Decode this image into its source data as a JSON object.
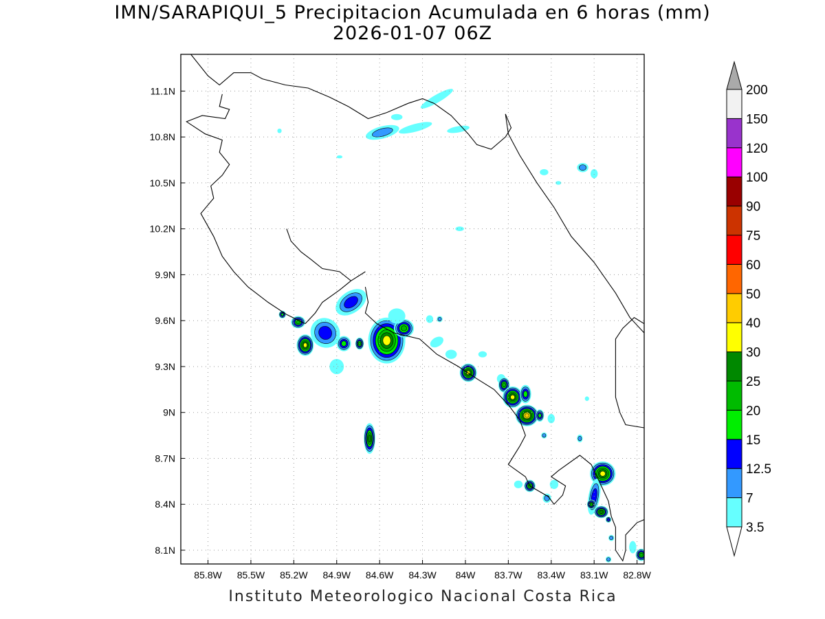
{
  "title": {
    "line1": "IMN/SARAPIQUI_5 Precipitacion Acumulada en 6 horas (mm)",
    "line2": "2026-01-07 06Z"
  },
  "footer": "Instituto Meteorologico Nacional Costa Rica",
  "map": {
    "lon_range": [
      -85.99,
      -82.75
    ],
    "lat_range": [
      8.01,
      11.34
    ],
    "x_ticks": [
      {
        "lon": -85.8,
        "label": "85.8W"
      },
      {
        "lon": -85.5,
        "label": "85.5W"
      },
      {
        "lon": -85.2,
        "label": "85.2W"
      },
      {
        "lon": -84.9,
        "label": "84.9W"
      },
      {
        "lon": -84.6,
        "label": "84.6W"
      },
      {
        "lon": -84.3,
        "label": "84.3W"
      },
      {
        "lon": -84.0,
        "label": "84W"
      },
      {
        "lon": -83.7,
        "label": "83.7W"
      },
      {
        "lon": -83.4,
        "label": "83.4W"
      },
      {
        "lon": -83.1,
        "label": "83.1W"
      },
      {
        "lon": -82.8,
        "label": "82.8W"
      }
    ],
    "y_ticks": [
      {
        "lat": 11.1,
        "label": "11.1N"
      },
      {
        "lat": 10.8,
        "label": "10.8N"
      },
      {
        "lat": 10.5,
        "label": "10.5N"
      },
      {
        "lat": 10.2,
        "label": "10.2N"
      },
      {
        "lat": 9.9,
        "label": "9.9N"
      },
      {
        "lat": 9.6,
        "label": "9.6N"
      },
      {
        "lat": 9.3,
        "label": "9.3N"
      },
      {
        "lat": 9.0,
        "label": "9N"
      },
      {
        "lat": 8.7,
        "label": "8.7N"
      },
      {
        "lat": 8.4,
        "label": "8.4N"
      },
      {
        "lat": 8.1,
        "label": "8.1N"
      }
    ],
    "grid": "dotted",
    "coastline": [
      [
        [
          -85.92,
          11.34
        ],
        [
          -85.8,
          11.2
        ],
        [
          -85.72,
          11.14
        ],
        [
          -85.62,
          11.22
        ],
        [
          -85.5,
          11.22
        ],
        [
          -85.42,
          11.18
        ],
        [
          -85.26,
          11.14
        ],
        [
          -85.1,
          11.12
        ],
        [
          -84.95,
          11.06
        ],
        [
          -84.82,
          11.0
        ],
        [
          -84.68,
          10.92
        ],
        [
          -84.55,
          10.96
        ],
        [
          -84.4,
          11.02
        ],
        [
          -84.3,
          11.05
        ],
        [
          -84.22,
          11.02
        ],
        [
          -84.1,
          10.94
        ],
        [
          -83.98,
          10.82
        ],
        [
          -83.92,
          10.75
        ],
        [
          -83.82,
          10.72
        ],
        [
          -83.72,
          10.8
        ],
        [
          -83.68,
          10.86
        ],
        [
          -83.72,
          10.95
        ]
      ],
      [
        [
          -85.7,
          11.08
        ],
        [
          -85.72,
          11.0
        ],
        [
          -85.65,
          10.98
        ],
        [
          -85.68,
          10.92
        ],
        [
          -85.84,
          10.94
        ],
        [
          -85.95,
          10.9
        ],
        [
          -85.82,
          10.82
        ],
        [
          -85.7,
          10.78
        ],
        [
          -85.72,
          10.7
        ],
        [
          -85.65,
          10.62
        ],
        [
          -85.7,
          10.55
        ],
        [
          -85.78,
          10.48
        ],
        [
          -85.76,
          10.4
        ],
        [
          -85.85,
          10.3
        ],
        [
          -85.76,
          10.15
        ],
        [
          -85.7,
          10.02
        ],
        [
          -85.62,
          9.92
        ],
        [
          -85.52,
          9.82
        ],
        [
          -85.38,
          9.72
        ],
        [
          -85.25,
          9.64
        ],
        [
          -85.12,
          9.58
        ]
      ],
      [
        [
          -85.12,
          9.58
        ],
        [
          -85.05,
          9.65
        ],
        [
          -85.0,
          9.72
        ],
        [
          -84.88,
          9.8
        ],
        [
          -84.8,
          9.86
        ],
        [
          -84.7,
          9.92
        ]
      ],
      [
        [
          -85.25,
          10.2
        ],
        [
          -85.22,
          10.12
        ],
        [
          -85.15,
          10.05
        ],
        [
          -85.08,
          10.0
        ],
        [
          -85.0,
          9.94
        ],
        [
          -84.88,
          9.92
        ],
        [
          -84.8,
          9.86
        ]
      ],
      [
        [
          -84.7,
          9.82
        ],
        [
          -84.68,
          9.72
        ],
        [
          -84.7,
          9.65
        ],
        [
          -84.62,
          9.58
        ],
        [
          -84.5,
          9.52
        ],
        [
          -84.32,
          9.48
        ],
        [
          -84.2,
          9.38
        ],
        [
          -84.05,
          9.3
        ],
        [
          -83.92,
          9.22
        ],
        [
          -83.8,
          9.15
        ],
        [
          -83.7,
          9.05
        ],
        [
          -83.62,
          8.95
        ],
        [
          -83.58,
          8.85
        ],
        [
          -83.62,
          8.78
        ],
        [
          -83.7,
          8.66
        ],
        [
          -83.58,
          8.58
        ],
        [
          -83.55,
          8.52
        ],
        [
          -83.42,
          8.45
        ],
        [
          -83.38,
          8.4
        ],
        [
          -83.32,
          8.46
        ],
        [
          -83.3,
          8.52
        ],
        [
          -83.4,
          8.58
        ],
        [
          -83.35,
          8.62
        ],
        [
          -83.2,
          8.72
        ],
        [
          -83.12,
          8.66
        ],
        [
          -83.05,
          8.52
        ],
        [
          -83.0,
          8.42
        ],
        [
          -82.98,
          8.32
        ],
        [
          -82.95,
          8.25
        ],
        [
          -82.95,
          8.1
        ],
        [
          -82.9,
          8.03
        ],
        [
          -82.88,
          8.1
        ],
        [
          -82.88,
          8.2
        ],
        [
          -82.8,
          8.28
        ],
        [
          -82.75,
          8.3
        ]
      ],
      [
        [
          -83.72,
          10.95
        ],
        [
          -83.7,
          10.82
        ],
        [
          -83.62,
          10.68
        ],
        [
          -83.5,
          10.5
        ],
        [
          -83.38,
          10.34
        ],
        [
          -83.26,
          10.15
        ],
        [
          -83.1,
          9.98
        ],
        [
          -82.95,
          9.78
        ],
        [
          -82.85,
          9.62
        ],
        [
          -82.75,
          9.52
        ]
      ],
      [
        [
          -82.75,
          9.58
        ],
        [
          -82.82,
          9.62
        ],
        [
          -82.9,
          9.55
        ],
        [
          -82.95,
          9.48
        ],
        [
          -82.95,
          9.3
        ],
        [
          -82.95,
          9.1
        ],
        [
          -82.92,
          9.0
        ],
        [
          -82.88,
          8.92
        ],
        [
          -82.75,
          8.9
        ]
      ]
    ]
  },
  "legend": {
    "unit": "mm",
    "levels": [
      "3.5",
      "7",
      "12.5",
      "15",
      "20",
      "25",
      "30",
      "40",
      "50",
      "60",
      "75",
      "90",
      "100",
      "120",
      "150",
      "200"
    ],
    "colors": [
      "#ffffff",
      "#66ffff",
      "#3399ff",
      "#0000ff",
      "#00ee00",
      "#00bb00",
      "#008800",
      "#ffff00",
      "#ffcc00",
      "#ff6600",
      "#ff0000",
      "#cc3300",
      "#990000",
      "#ff00ff",
      "#9933cc",
      "#f2f2f2",
      "#aaaaaa"
    ]
  },
  "rain_cells": [
    {
      "lon": -84.58,
      "lat": 10.83,
      "rx": 0.12,
      "ry": 0.04,
      "rot": -15,
      "level": 2
    },
    {
      "lon": -84.35,
      "lat": 10.86,
      "rx": 0.12,
      "ry": 0.025,
      "rot": -15,
      "level": 1
    },
    {
      "lon": -84.05,
      "lat": 10.85,
      "rx": 0.08,
      "ry": 0.02,
      "rot": -10,
      "level": 1
    },
    {
      "lon": -84.2,
      "lat": 11.05,
      "rx": 0.13,
      "ry": 0.025,
      "rot": -30,
      "level": 1
    },
    {
      "lon": -84.48,
      "lat": 10.93,
      "rx": 0.04,
      "ry": 0.02,
      "rot": 0,
      "level": 1
    },
    {
      "lon": -85.3,
      "lat": 10.84,
      "rx": 0.015,
      "ry": 0.015,
      "rot": 0,
      "level": 1
    },
    {
      "lon": -84.88,
      "lat": 10.67,
      "rx": 0.02,
      "ry": 0.01,
      "rot": 0,
      "level": 1
    },
    {
      "lon": -83.45,
      "lat": 10.57,
      "rx": 0.03,
      "ry": 0.02,
      "rot": 0,
      "level": 1
    },
    {
      "lon": -83.18,
      "lat": 10.6,
      "rx": 0.04,
      "ry": 0.03,
      "rot": 0,
      "level": 2
    },
    {
      "lon": -83.1,
      "lat": 10.56,
      "rx": 0.025,
      "ry": 0.03,
      "rot": 0,
      "level": 1
    },
    {
      "lon": -83.35,
      "lat": 10.5,
      "rx": 0.02,
      "ry": 0.012,
      "rot": 0,
      "level": 1
    },
    {
      "lon": -84.04,
      "lat": 10.2,
      "rx": 0.03,
      "ry": 0.015,
      "rot": 0,
      "level": 1
    },
    {
      "lon": -85.28,
      "lat": 9.64,
      "rx": 0.025,
      "ry": 0.025,
      "rot": 0,
      "level": 4
    },
    {
      "lon": -85.17,
      "lat": 9.59,
      "rx": 0.05,
      "ry": 0.04,
      "rot": 0,
      "level": 5
    },
    {
      "lon": -85.12,
      "lat": 9.44,
      "rx": 0.06,
      "ry": 0.07,
      "rot": 0,
      "level": 7
    },
    {
      "lon": -84.98,
      "lat": 9.52,
      "rx": 0.1,
      "ry": 0.1,
      "rot": -40,
      "level": 3
    },
    {
      "lon": -84.9,
      "lat": 9.3,
      "rx": 0.05,
      "ry": 0.05,
      "rot": 0,
      "level": 1
    },
    {
      "lon": -84.8,
      "lat": 9.72,
      "rx": 0.12,
      "ry": 0.07,
      "rot": -35,
      "level": 3
    },
    {
      "lon": -84.85,
      "lat": 9.45,
      "rx": 0.05,
      "ry": 0.05,
      "rot": 0,
      "level": 4
    },
    {
      "lon": -84.74,
      "lat": 9.45,
      "rx": 0.03,
      "ry": 0.04,
      "rot": 0,
      "level": 5
    },
    {
      "lon": -84.55,
      "lat": 9.47,
      "rx": 0.13,
      "ry": 0.15,
      "rot": 0,
      "level": 7
    },
    {
      "lon": -84.43,
      "lat": 9.55,
      "rx": 0.07,
      "ry": 0.06,
      "rot": 0,
      "level": 5
    },
    {
      "lon": -84.48,
      "lat": 9.63,
      "rx": 0.06,
      "ry": 0.05,
      "rot": 0,
      "level": 1
    },
    {
      "lon": -84.25,
      "lat": 9.61,
      "rx": 0.025,
      "ry": 0.025,
      "rot": 0,
      "level": 1
    },
    {
      "lon": -84.18,
      "lat": 9.61,
      "rx": 0.02,
      "ry": 0.02,
      "rot": 0,
      "level": 2
    },
    {
      "lon": -84.2,
      "lat": 9.46,
      "rx": 0.05,
      "ry": 0.03,
      "rot": -30,
      "level": 1
    },
    {
      "lon": -84.1,
      "lat": 9.38,
      "rx": 0.04,
      "ry": 0.03,
      "rot": 0,
      "level": 1
    },
    {
      "lon": -83.98,
      "lat": 9.26,
      "rx": 0.06,
      "ry": 0.06,
      "rot": 0,
      "level": 7
    },
    {
      "lon": -83.88,
      "lat": 9.38,
      "rx": 0.03,
      "ry": 0.02,
      "rot": 0,
      "level": 1
    },
    {
      "lon": -83.75,
      "lat": 9.22,
      "rx": 0.03,
      "ry": 0.03,
      "rot": 0,
      "level": 1
    },
    {
      "lon": -83.73,
      "lat": 9.18,
      "rx": 0.04,
      "ry": 0.05,
      "rot": 0,
      "level": 5
    },
    {
      "lon": -83.67,
      "lat": 9.1,
      "rx": 0.07,
      "ry": 0.07,
      "rot": 0,
      "level": 7
    },
    {
      "lon": -83.58,
      "lat": 9.12,
      "rx": 0.04,
      "ry": 0.06,
      "rot": 0,
      "level": 4
    },
    {
      "lon": -83.57,
      "lat": 8.98,
      "rx": 0.08,
      "ry": 0.07,
      "rot": 0,
      "level": 8
    },
    {
      "lon": -83.48,
      "lat": 8.98,
      "rx": 0.03,
      "ry": 0.04,
      "rot": 0,
      "level": 4
    },
    {
      "lon": -83.4,
      "lat": 8.96,
      "rx": 0.025,
      "ry": 0.03,
      "rot": 0,
      "level": 1
    },
    {
      "lon": -83.45,
      "lat": 8.85,
      "rx": 0.02,
      "ry": 0.02,
      "rot": 0,
      "level": 2
    },
    {
      "lon": -83.2,
      "lat": 8.83,
      "rx": 0.02,
      "ry": 0.025,
      "rot": 0,
      "level": 2
    },
    {
      "lon": -83.15,
      "lat": 9.09,
      "rx": 0.015,
      "ry": 0.015,
      "rot": 0,
      "level": 1
    },
    {
      "lon": -84.67,
      "lat": 8.83,
      "rx": 0.04,
      "ry": 0.1,
      "rot": 0,
      "level": 6
    },
    {
      "lon": -83.55,
      "lat": 8.52,
      "rx": 0.04,
      "ry": 0.04,
      "rot": 0,
      "level": 5
    },
    {
      "lon": -83.63,
      "lat": 8.53,
      "rx": 0.03,
      "ry": 0.025,
      "rot": 0,
      "level": 1
    },
    {
      "lon": -83.38,
      "lat": 8.53,
      "rx": 0.03,
      "ry": 0.03,
      "rot": 0,
      "level": 1
    },
    {
      "lon": -83.43,
      "lat": 8.44,
      "rx": 0.03,
      "ry": 0.03,
      "rot": 0,
      "level": 2
    },
    {
      "lon": -83.04,
      "lat": 8.6,
      "rx": 0.09,
      "ry": 0.08,
      "rot": 0,
      "level": 7
    },
    {
      "lon": -83.1,
      "lat": 8.45,
      "rx": 0.04,
      "ry": 0.12,
      "rot": 10,
      "level": 3
    },
    {
      "lon": -83.12,
      "lat": 8.4,
      "rx": 0.03,
      "ry": 0.03,
      "rot": 0,
      "level": 5
    },
    {
      "lon": -83.05,
      "lat": 8.35,
      "rx": 0.05,
      "ry": 0.04,
      "rot": 0,
      "level": 6
    },
    {
      "lon": -83.0,
      "lat": 8.3,
      "rx": 0.02,
      "ry": 0.02,
      "rot": 0,
      "level": 3
    },
    {
      "lon": -82.98,
      "lat": 8.18,
      "rx": 0.02,
      "ry": 0.02,
      "rot": 0,
      "level": 2
    },
    {
      "lon": -83.0,
      "lat": 8.04,
      "rx": 0.02,
      "ry": 0.02,
      "rot": 0,
      "level": 2
    },
    {
      "lon": -82.83,
      "lat": 8.12,
      "rx": 0.025,
      "ry": 0.04,
      "rot": 0,
      "level": 1
    },
    {
      "lon": -82.77,
      "lat": 8.07,
      "rx": 0.04,
      "ry": 0.04,
      "rot": 0,
      "level": 5
    }
  ]
}
